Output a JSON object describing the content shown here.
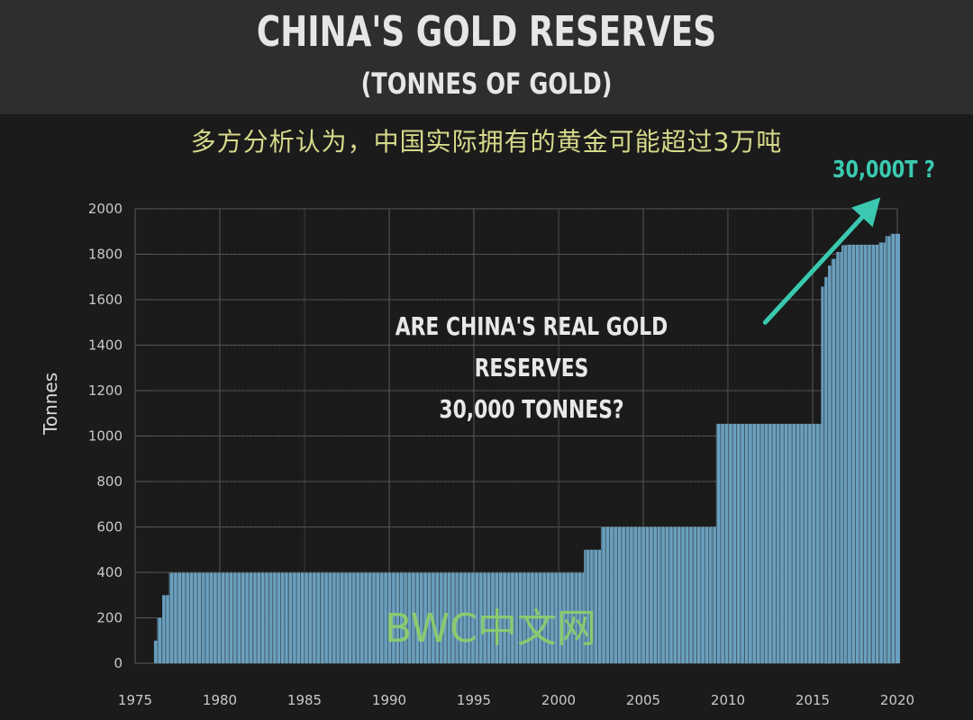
{
  "header": {
    "title": "CHINA'S GOLD RESERVES",
    "subtitle": "(TONNES OF GOLD)"
  },
  "annotations": {
    "chinese_note": "多方分析认为，中国实际拥有的黄金可能超过3万吨",
    "target_label": "30,000T ?",
    "question_line1": "ARE CHINA'S REAL GOLD RESERVES",
    "question_line2": "30,000 TONNES?",
    "watermark": "BWC中文网"
  },
  "colors": {
    "bar": "#6aa0bf",
    "arrow": "#3ac9b0",
    "grid": "#5a5a5a"
  },
  "chart_data": {
    "type": "bar",
    "title": "CHINA'S GOLD RESERVES",
    "subtitle": "(TONNES OF GOLD)",
    "xlabel": "",
    "ylabel": "Tonnes",
    "ylim": [
      0,
      2000
    ],
    "xlim": [
      1975,
      2020
    ],
    "yticks": [
      0,
      200,
      400,
      600,
      800,
      1000,
      1200,
      1400,
      1600,
      1800,
      2000
    ],
    "xticks": [
      1975,
      1980,
      1985,
      1990,
      1995,
      2000,
      2005,
      2010,
      2015,
      2020
    ],
    "grid": true,
    "series": [
      {
        "points": [
          [
            1976.1,
            100
          ],
          [
            1976.3,
            200
          ],
          [
            1976.6,
            300
          ],
          [
            1977.0,
            398
          ],
          [
            1978.0,
            398
          ],
          [
            1979.0,
            398
          ],
          [
            1980.0,
            398
          ],
          [
            1981.0,
            398
          ],
          [
            1982.0,
            398
          ],
          [
            1983.0,
            398
          ],
          [
            1984.0,
            398
          ],
          [
            1985.0,
            398
          ],
          [
            1986.0,
            398
          ],
          [
            1987.0,
            398
          ],
          [
            1988.0,
            398
          ],
          [
            1989.0,
            398
          ],
          [
            1990.0,
            398
          ],
          [
            1991.0,
            398
          ],
          [
            1992.0,
            398
          ],
          [
            1993.0,
            398
          ],
          [
            1994.0,
            398
          ],
          [
            1995.0,
            398
          ],
          [
            1996.0,
            398
          ],
          [
            1997.0,
            398
          ],
          [
            1998.0,
            398
          ],
          [
            1999.0,
            398
          ],
          [
            2000.0,
            398
          ],
          [
            2001.0,
            398
          ],
          [
            2001.5,
            500
          ],
          [
            2002.0,
            500
          ],
          [
            2002.5,
            600
          ],
          [
            2003.0,
            600
          ],
          [
            2004.0,
            600
          ],
          [
            2005.0,
            600
          ],
          [
            2006.0,
            600
          ],
          [
            2007.0,
            600
          ],
          [
            2008.0,
            600
          ],
          [
            2009.0,
            600
          ],
          [
            2009.3,
            1054
          ],
          [
            2010.0,
            1054
          ],
          [
            2011.0,
            1054
          ],
          [
            2012.0,
            1054
          ],
          [
            2013.0,
            1054
          ],
          [
            2014.0,
            1054
          ],
          [
            2015.0,
            1054
          ],
          [
            2015.5,
            1658
          ],
          [
            2015.7,
            1700
          ],
          [
            2015.9,
            1750
          ],
          [
            2016.1,
            1780
          ],
          [
            2016.4,
            1810
          ],
          [
            2016.7,
            1840
          ],
          [
            2017.0,
            1842
          ],
          [
            2017.5,
            1842
          ],
          [
            2018.0,
            1842
          ],
          [
            2018.5,
            1842
          ],
          [
            2018.9,
            1852
          ],
          [
            2019.3,
            1880
          ],
          [
            2019.6,
            1890
          ],
          [
            2020.0,
            1890
          ]
        ]
      }
    ],
    "annotation": {
      "text": "30,000T ?",
      "arrow_from": [
        2012.2,
        1500
      ],
      "arrow_to": [
        2019.0,
        2050
      ]
    }
  }
}
